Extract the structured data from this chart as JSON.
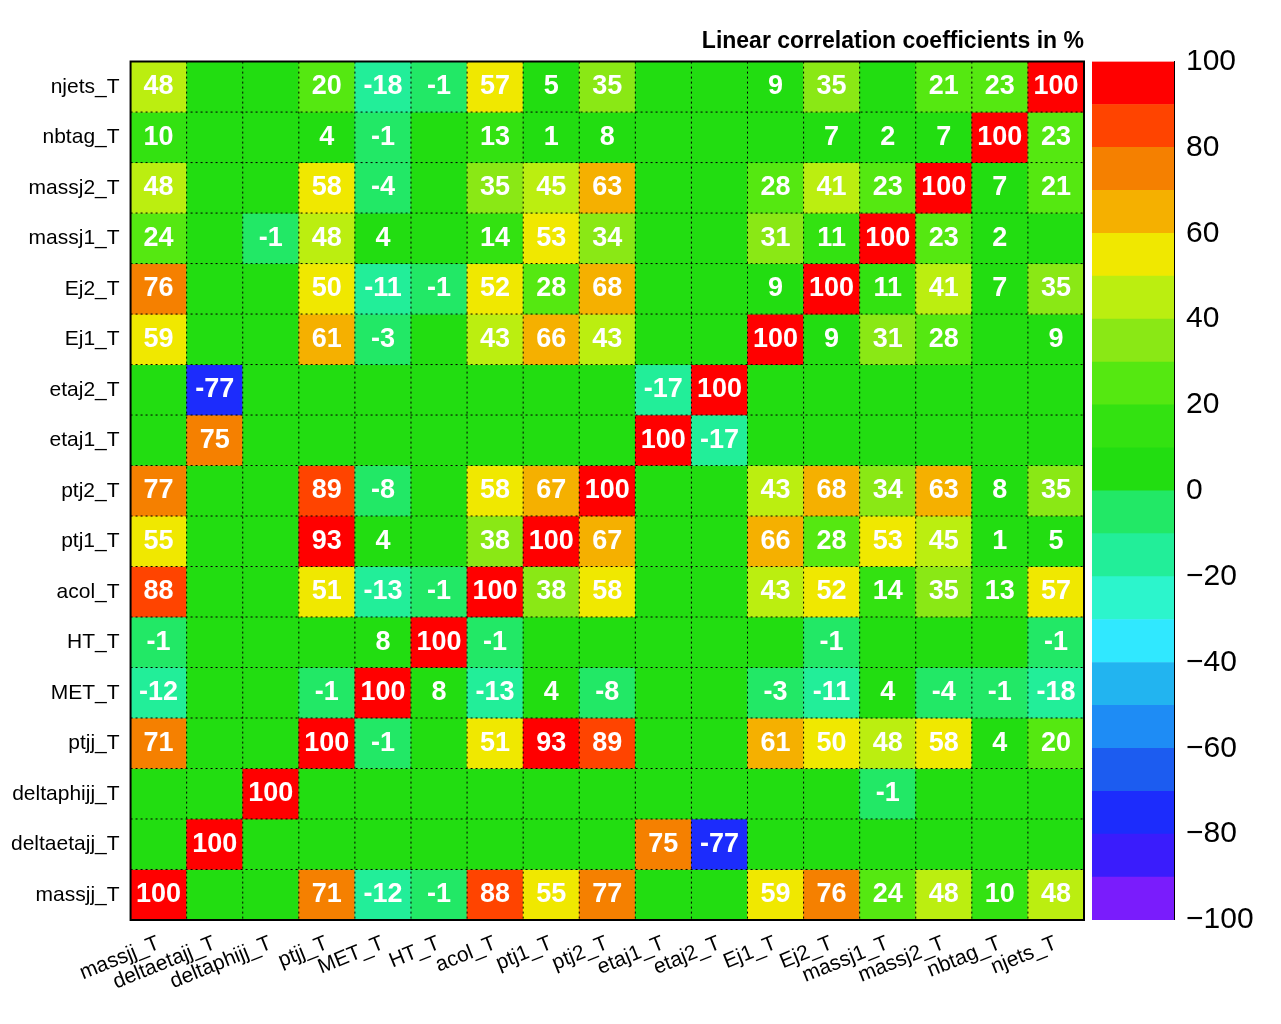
{
  "chart_data": {
    "type": "heatmap",
    "title": "Linear correlation coefficients in %",
    "categories": [
      "massjj_T",
      "deltaetajj_T",
      "deltaphijj_T",
      "ptjj_T",
      "MET_T",
      "HT_T",
      "acol_T",
      "ptj1_T",
      "ptj2_T",
      "etaj1_T",
      "etaj2_T",
      "Ej1_T",
      "Ej2_T",
      "massj1_T",
      "massj2_T",
      "nbtag_T",
      "njets_T"
    ],
    "y_categories": [
      "njets_T",
      "nbtag_T",
      "massj2_T",
      "massj1_T",
      "Ej2_T",
      "Ej1_T",
      "etaj2_T",
      "etaj1_T",
      "ptj2_T",
      "ptj1_T",
      "acol_T",
      "HT_T",
      "MET_T",
      "ptjj_T",
      "deltaphijj_T",
      "deltaetajj_T",
      "massjj_T"
    ],
    "cells": [
      [
        48,
        0,
        0,
        20,
        -18,
        -1,
        57,
        5,
        35,
        0,
        0,
        9,
        35,
        0,
        21,
        23,
        100
      ],
      [
        10,
        0,
        0,
        4,
        -1,
        0,
        13,
        1,
        8,
        0,
        0,
        0,
        7,
        2,
        7,
        100,
        23
      ],
      [
        48,
        0,
        0,
        58,
        -4,
        0,
        35,
        45,
        63,
        0,
        0,
        28,
        41,
        23,
        100,
        7,
        21
      ],
      [
        24,
        0,
        -1,
        48,
        4,
        0,
        14,
        53,
        34,
        0,
        0,
        31,
        11,
        100,
        23,
        2,
        0
      ],
      [
        76,
        0,
        0,
        50,
        -11,
        -1,
        52,
        28,
        68,
        0,
        0,
        9,
        100,
        11,
        41,
        7,
        35
      ],
      [
        59,
        0,
        0,
        61,
        -3,
        0,
        43,
        66,
        43,
        0,
        0,
        100,
        9,
        31,
        28,
        0,
        9
      ],
      [
        0,
        -77,
        0,
        0,
        0,
        0,
        0,
        0,
        0,
        -17,
        100,
        0,
        0,
        0,
        0,
        0,
        0
      ],
      [
        0,
        75,
        0,
        0,
        0,
        0,
        0,
        0,
        0,
        100,
        -17,
        0,
        0,
        0,
        0,
        0,
        0
      ],
      [
        77,
        0,
        0,
        89,
        -8,
        0,
        58,
        67,
        100,
        0,
        0,
        43,
        68,
        34,
        63,
        8,
        35
      ],
      [
        55,
        0,
        0,
        93,
        4,
        0,
        38,
        100,
        67,
        0,
        0,
        66,
        28,
        53,
        45,
        1,
        5
      ],
      [
        88,
        0,
        0,
        51,
        -13,
        -1,
        100,
        38,
        58,
        0,
        0,
        43,
        52,
        14,
        35,
        13,
        57
      ],
      [
        -1,
        0,
        0,
        0,
        8,
        100,
        -1,
        0,
        0,
        0,
        0,
        0,
        -1,
        0,
        0,
        0,
        -1
      ],
      [
        -12,
        0,
        0,
        -1,
        100,
        8,
        -13,
        4,
        -8,
        0,
        0,
        -3,
        -11,
        4,
        -4,
        -1,
        -18
      ],
      [
        71,
        0,
        0,
        100,
        -1,
        0,
        51,
        93,
        89,
        0,
        0,
        61,
        50,
        48,
        58,
        4,
        20
      ],
      [
        0,
        0,
        100,
        0,
        0,
        0,
        0,
        0,
        0,
        0,
        0,
        0,
        0,
        -1,
        0,
        0,
        0
      ],
      [
        0,
        100,
        0,
        0,
        0,
        0,
        0,
        0,
        0,
        75,
        -77,
        0,
        0,
        0,
        0,
        0,
        0
      ],
      [
        100,
        0,
        0,
        71,
        -12,
        -1,
        88,
        55,
        77,
        0,
        0,
        59,
        76,
        24,
        48,
        10,
        48
      ]
    ],
    "cell_labels": [
      [
        "48",
        null,
        null,
        "20",
        "-18",
        "-1",
        "57",
        "5",
        "35",
        null,
        null,
        "9",
        "35",
        null,
        "21",
        "23",
        "100"
      ],
      [
        "10",
        null,
        null,
        "4",
        "-1",
        null,
        "13",
        "1",
        "8",
        null,
        null,
        null,
        "7",
        "2",
        "7",
        "100",
        "23"
      ],
      [
        "48",
        null,
        null,
        "58",
        "-4",
        null,
        "35",
        "45",
        "63",
        null,
        null,
        "28",
        "41",
        "23",
        "100",
        "7",
        "21"
      ],
      [
        "24",
        null,
        "-1",
        "48",
        "4",
        null,
        "14",
        "53",
        "34",
        null,
        null,
        "31",
        "11",
        "100",
        "23",
        "2",
        null
      ],
      [
        "76",
        null,
        null,
        "50",
        "-11",
        "-1",
        "52",
        "28",
        "68",
        null,
        null,
        "9",
        "100",
        "11",
        "41",
        "7",
        "35"
      ],
      [
        "59",
        null,
        null,
        "61",
        "-3",
        null,
        "43",
        "66",
        "43",
        null,
        null,
        "100",
        "9",
        "31",
        "28",
        null,
        "9"
      ],
      [
        null,
        "-77",
        null,
        null,
        null,
        null,
        null,
        null,
        null,
        "-17",
        "100",
        null,
        null,
        null,
        null,
        null,
        null
      ],
      [
        null,
        "75",
        null,
        null,
        null,
        null,
        null,
        null,
        null,
        "100",
        "-17",
        null,
        null,
        null,
        null,
        null,
        null
      ],
      [
        "77",
        null,
        null,
        "89",
        "-8",
        null,
        "58",
        "67",
        "100",
        null,
        null,
        "43",
        "68",
        "34",
        "63",
        "8",
        "35"
      ],
      [
        "55",
        null,
        null,
        "93",
        "4",
        null,
        "38",
        "100",
        "67",
        null,
        null,
        "66",
        "28",
        "53",
        "45",
        "1",
        "5"
      ],
      [
        "88",
        null,
        null,
        "51",
        "-13",
        "-1",
        "100",
        "38",
        "58",
        null,
        null,
        "43",
        "52",
        "14",
        "35",
        "13",
        "57"
      ],
      [
        "-1",
        null,
        null,
        null,
        "8",
        "100",
        "-1",
        null,
        null,
        null,
        null,
        null,
        "-1",
        null,
        null,
        null,
        "-1"
      ],
      [
        "-12",
        null,
        null,
        "-1",
        "100",
        "8",
        "-13",
        "4",
        "-8",
        null,
        null,
        "-3",
        "-11",
        "4",
        "-4",
        "-1",
        "-18"
      ],
      [
        "71",
        null,
        null,
        "100",
        "-1",
        null,
        "51",
        "93",
        "89",
        null,
        null,
        "61",
        "50",
        "48",
        "58",
        "4",
        "20"
      ],
      [
        null,
        null,
        "100",
        null,
        null,
        null,
        null,
        null,
        null,
        null,
        null,
        null,
        null,
        "-1",
        null,
        null,
        null
      ],
      [
        null,
        "100",
        null,
        null,
        null,
        null,
        null,
        null,
        null,
        "75",
        "-77",
        null,
        null,
        null,
        null,
        null,
        null
      ],
      [
        "100",
        null,
        null,
        "71",
        "-12",
        "-1",
        "88",
        "55",
        "77",
        null,
        null,
        "59",
        "76",
        "24",
        "48",
        "10",
        "48"
      ]
    ],
    "clim": [
      -100,
      100
    ],
    "cticks": [
      {
        "value": -100,
        "label": "−100"
      },
      {
        "value": -80,
        "label": "−80"
      },
      {
        "value": -60,
        "label": "−60"
      },
      {
        "value": -40,
        "label": "−40"
      },
      {
        "value": -20,
        "label": "−20"
      },
      0,
      20,
      40,
      60,
      80,
      100
    ],
    "grid": true
  }
}
